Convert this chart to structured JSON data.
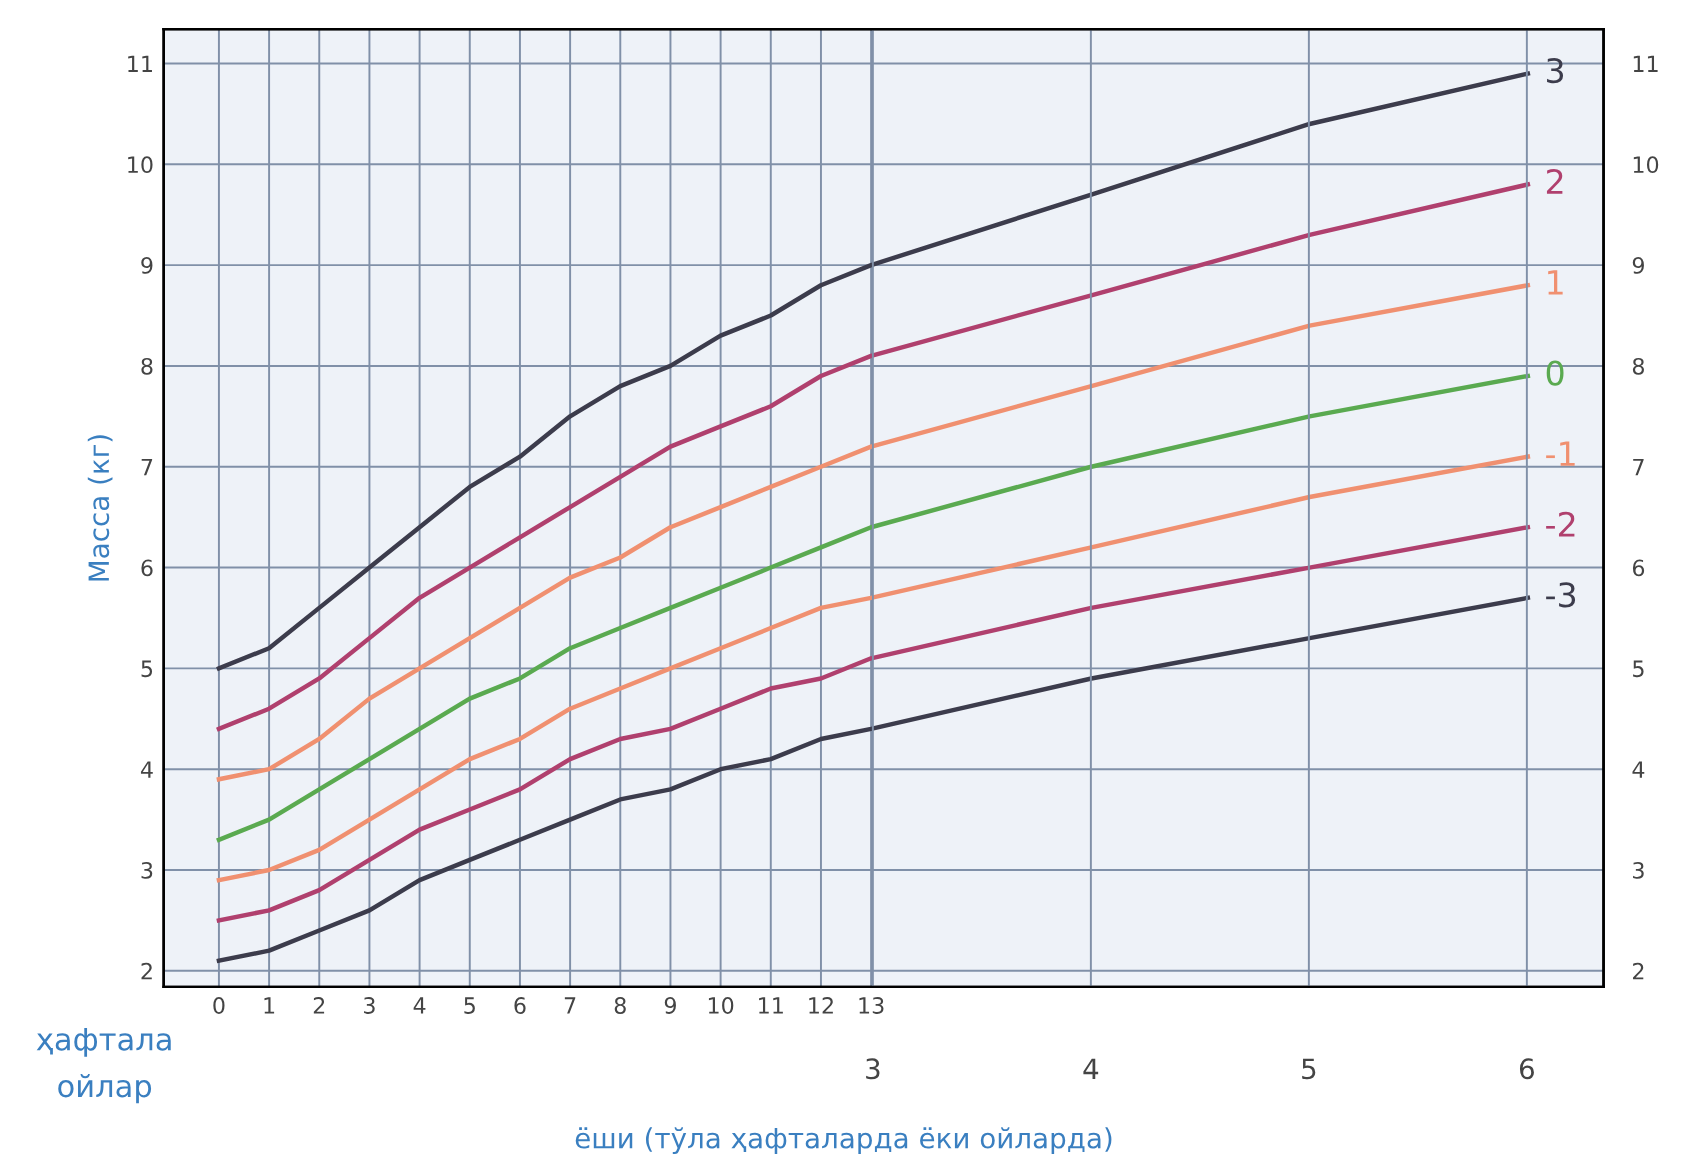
{
  "chart_data": {
    "type": "line",
    "xlabel": "ёши (тўла ҳафталарда ёки ойларда)",
    "ylabel": "Масса (кг)",
    "annotations": [
      "ҳафтала",
      "ойлар"
    ],
    "x": [
      0,
      1,
      2,
      3,
      4,
      5,
      6,
      7,
      8,
      9,
      10,
      11,
      12,
      13,
      17.39,
      21.74,
      26.09
    ],
    "series": [
      {
        "name": "3",
        "color": "#3c3c4c",
        "values": [
          5.0,
          5.2,
          5.6,
          6.0,
          6.4,
          6.8,
          7.1,
          7.5,
          7.8,
          8.0,
          8.3,
          8.5,
          8.8,
          9.0,
          9.7,
          10.4,
          10.9
        ]
      },
      {
        "name": "2",
        "color": "#b0406e",
        "values": [
          4.4,
          4.6,
          4.9,
          5.3,
          5.7,
          6.0,
          6.3,
          6.6,
          6.9,
          7.2,
          7.4,
          7.6,
          7.9,
          8.1,
          8.7,
          9.3,
          9.8
        ]
      },
      {
        "name": "1",
        "color": "#f09070",
        "values": [
          3.9,
          4.0,
          4.3,
          4.7,
          5.0,
          5.3,
          5.6,
          5.9,
          6.1,
          6.4,
          6.6,
          6.8,
          7.0,
          7.2,
          7.8,
          8.4,
          8.8
        ]
      },
      {
        "name": "0",
        "color": "#5aaa50",
        "values": [
          3.3,
          3.5,
          3.8,
          4.1,
          4.4,
          4.7,
          4.9,
          5.2,
          5.4,
          5.6,
          5.8,
          6.0,
          6.2,
          6.4,
          7.0,
          7.5,
          7.9
        ]
      },
      {
        "name": "-1",
        "color": "#f09070",
        "values": [
          2.9,
          3.0,
          3.2,
          3.5,
          3.8,
          4.1,
          4.3,
          4.6,
          4.8,
          5.0,
          5.2,
          5.4,
          5.6,
          5.7,
          6.2,
          6.7,
          7.1
        ]
      },
      {
        "name": "-2",
        "color": "#b0406e",
        "values": [
          2.5,
          2.6,
          2.8,
          3.1,
          3.4,
          3.6,
          3.8,
          4.1,
          4.3,
          4.4,
          4.6,
          4.8,
          4.9,
          5.1,
          5.6,
          6.0,
          6.4
        ]
      },
      {
        "name": "-3",
        "color": "#3c3c4c",
        "values": [
          2.1,
          2.2,
          2.4,
          2.6,
          2.9,
          3.1,
          3.3,
          3.5,
          3.7,
          3.8,
          4.0,
          4.1,
          4.3,
          4.4,
          4.9,
          5.3,
          5.7
        ]
      }
    ],
    "xlim": [
      -1.1,
      27.6
    ],
    "xticks": [
      0,
      1,
      2,
      3,
      4,
      5,
      6,
      7,
      8,
      9,
      10,
      11,
      12,
      13
    ],
    "x2lim": [
      -0.253,
      6.352
    ],
    "x2ticks": [
      3,
      4,
      5,
      6
    ],
    "ylim": [
      1.84,
      11.34
    ],
    "yticks": [
      2,
      3,
      4,
      5,
      6,
      7,
      8,
      9,
      10,
      11
    ],
    "y2lim": [
      1.84,
      11.34
    ],
    "y2ticks": [
      2,
      3,
      4,
      5,
      6,
      7,
      8,
      9,
      10,
      11
    ],
    "grid": true,
    "marker": "none",
    "line_style": "solid"
  }
}
